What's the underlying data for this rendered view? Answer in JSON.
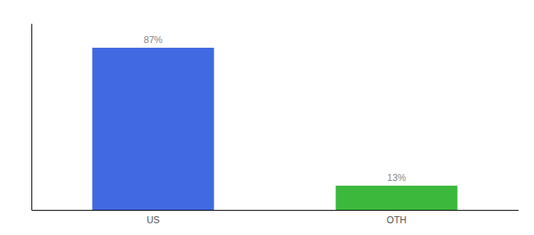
{
  "chart_data": {
    "type": "bar",
    "categories": [
      "US",
      "OTH"
    ],
    "values": [
      87,
      13
    ],
    "value_labels": [
      "87%",
      "13%"
    ],
    "colors": [
      "#4169e1",
      "#3cb83c"
    ],
    "ylim": [
      0,
      100
    ],
    "grid": false,
    "data_labels": true,
    "tick_labels": "x"
  }
}
